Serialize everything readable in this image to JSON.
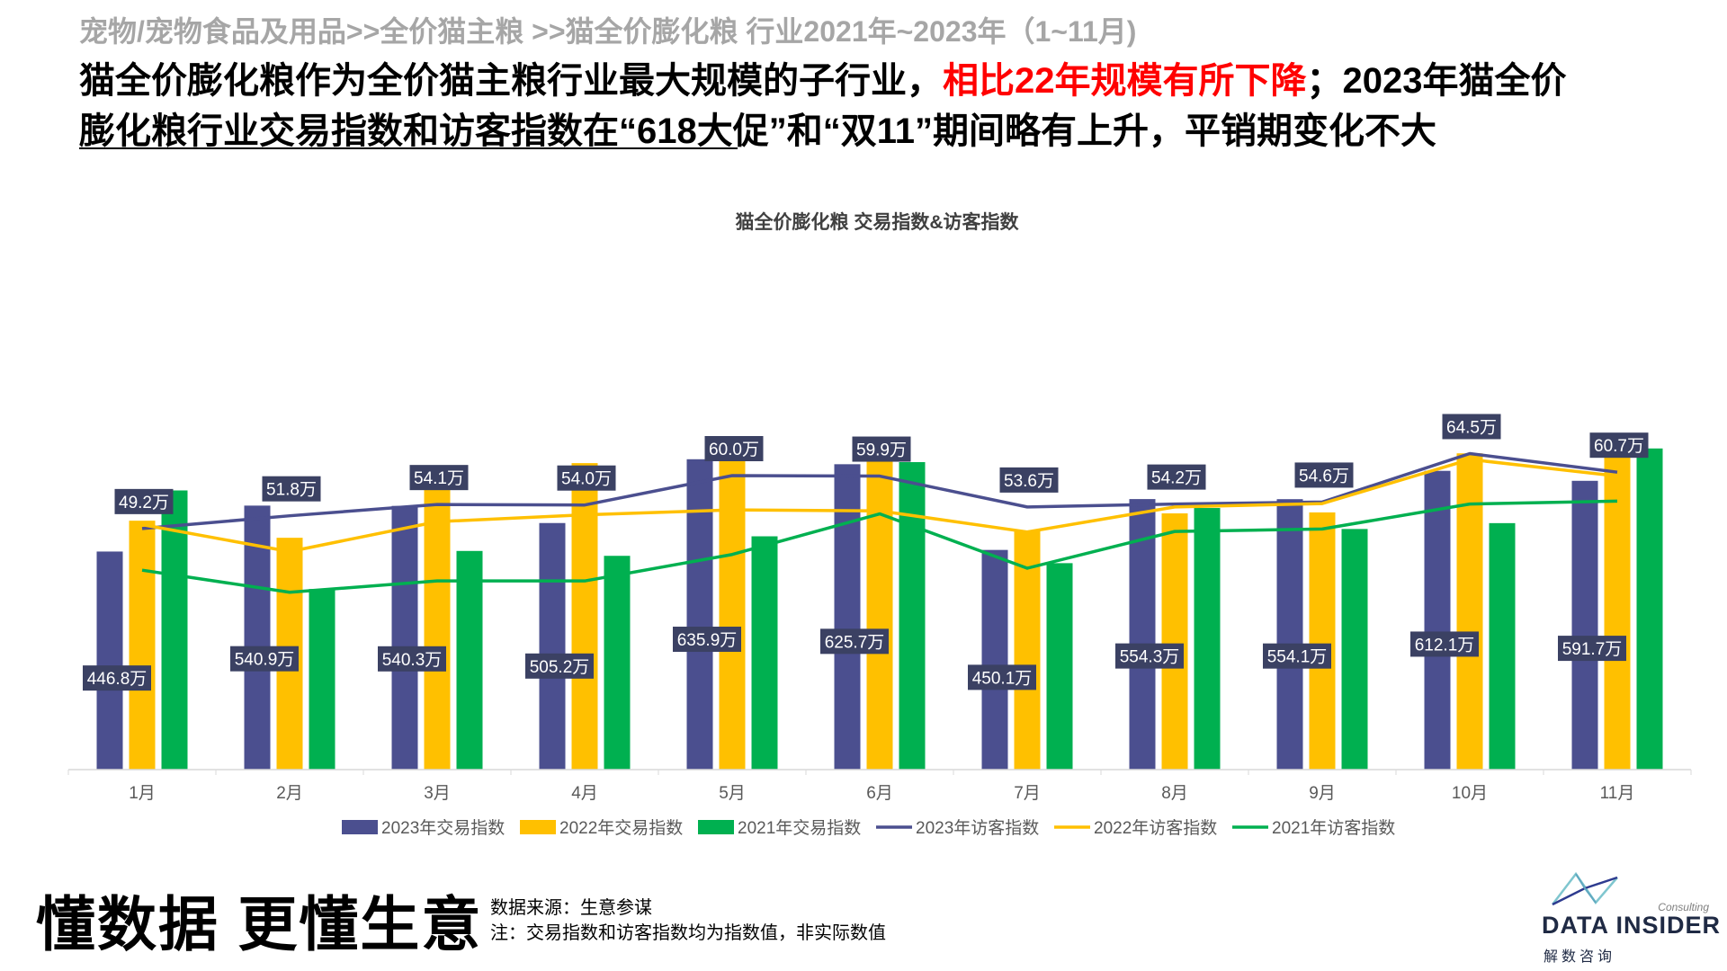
{
  "breadcrumb": "宠物/宠物食品及用品>>全价猫主粮 >>猫全价膨化粮 行业2021年~2023年（1~11月)",
  "headline": {
    "part1": "猫全价膨化粮作为全价猫主粮行业最大规模的子行业，",
    "highlight": "相比22年规模有所下降",
    "part2": "；2023年猫全价膨化粮行业交易指数和访客指数在“618大促”和“双11”期间略有上升，平销期变化不大"
  },
  "colors": {
    "series2023": "#4b4f8f",
    "series2022": "#ffc000",
    "series2021": "#00b050",
    "highlight": "#ff0000",
    "label_bg": "#3b4163"
  },
  "chart_data": {
    "type": "bar",
    "title": "猫全价膨化粮 交易指数&访客指数",
    "categories": [
      "1月",
      "2月",
      "3月",
      "4月",
      "5月",
      "6月",
      "7月",
      "8月",
      "9月",
      "10月",
      "11月"
    ],
    "bar_series": [
      {
        "name": "2023年交易指数",
        "values": [
          446.8,
          540.9,
          540.3,
          505.2,
          635.9,
          625.7,
          450.1,
          554.3,
          554.1,
          612.1,
          591.7
        ]
      },
      {
        "name": "2022年交易指数",
        "values": [
          510,
          475,
          610,
          628,
          636,
          640,
          490,
          525,
          527,
          648,
          668
        ]
      },
      {
        "name": "2021年交易指数",
        "values": [
          572,
          370,
          448,
          438,
          478,
          630,
          423,
          536,
          493,
          505,
          658
        ]
      }
    ],
    "line_series": [
      {
        "name": "2023年访客指数",
        "values": [
          49.2,
          51.8,
          54.1,
          54.0,
          60.0,
          59.9,
          53.6,
          54.2,
          54.6,
          64.5,
          60.7
        ]
      },
      {
        "name": "2022年访客指数",
        "values": [
          50.0,
          44.5,
          50.6,
          52.0,
          53.0,
          52.8,
          48.5,
          53.6,
          54.3,
          63.3,
          59.9
        ]
      },
      {
        "name": "2021年访客指数",
        "values": [
          40.7,
          36.2,
          38.5,
          38.5,
          43.9,
          52.2,
          41.1,
          48.6,
          49.1,
          54.2,
          54.8
        ]
      }
    ],
    "bar_labels": [
      "446.8万",
      "540.9万",
      "540.3万",
      "505.2万",
      "635.9万",
      "625.7万",
      "450.1万",
      "554.3万",
      "554.1万",
      "612.1万",
      "591.7万"
    ],
    "line_labels": [
      "49.2万",
      "51.8万",
      "54.1万",
      "54.0万",
      "60.0万",
      "59.9万",
      "53.6万",
      "54.2万",
      "54.6万",
      "64.5万",
      "60.7万"
    ],
    "bar_ylim": [
      0,
      700
    ],
    "line_ylim": [
      0,
      100
    ],
    "legend_position": "bottom",
    "grid": false
  },
  "footer": {
    "slogan": "懂数据 更懂生意",
    "source": "数据来源：生意参谋",
    "note": "注：交易指数和访客指数均为指数值，非实际数值"
  },
  "logo": {
    "consulting": "Consulting",
    "name": "DATA INSIDER",
    "cn": "解数咨询"
  }
}
